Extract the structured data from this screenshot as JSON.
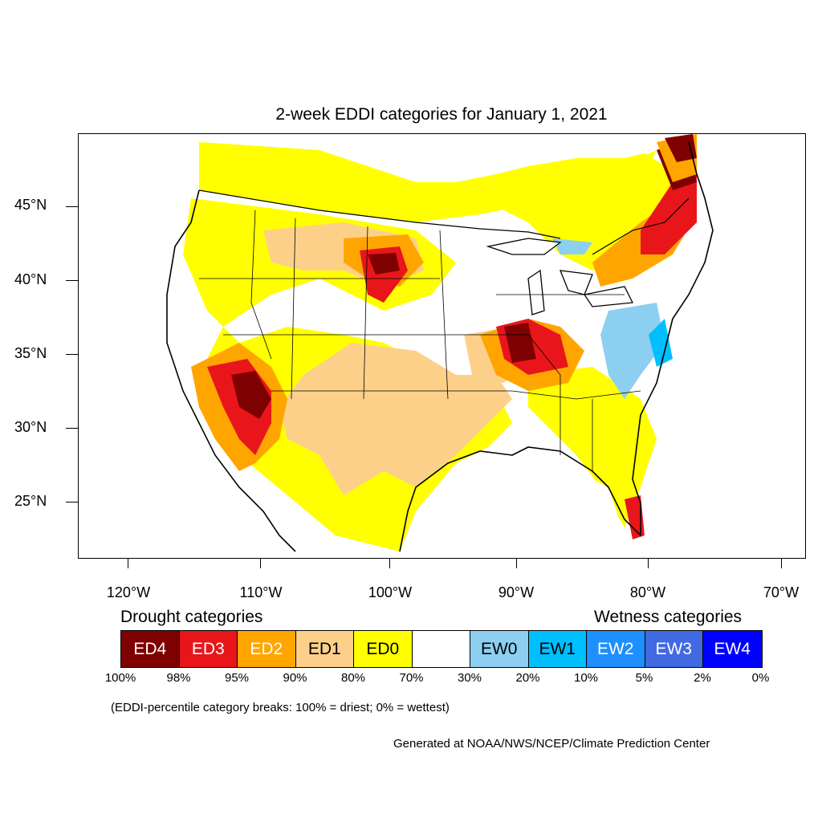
{
  "title": "2-week EDDI categories for January 1, 2021",
  "lat_labels": [
    "45°N",
    "40°N",
    "35°N",
    "30°N",
    "25°N"
  ],
  "lon_labels": [
    "120°W",
    "110°W",
    "100°W",
    "90°W",
    "80°W",
    "70°W"
  ],
  "legend": {
    "drought_heading": "Drought categories",
    "wetness_heading": "Wetness categories",
    "categories": [
      {
        "label": "ED4",
        "color": "#7f0000",
        "text_color": "#ffffff"
      },
      {
        "label": "ED3",
        "color": "#e8161b",
        "text_color": "#ffffff"
      },
      {
        "label": "ED2",
        "color": "#ffa500",
        "text_color": "#ffffff"
      },
      {
        "label": "ED1",
        "color": "#fdd08a",
        "text_color": "#000000"
      },
      {
        "label": "ED0",
        "color": "#ffff00",
        "text_color": "#000000"
      },
      {
        "label": "",
        "color": "#ffffff",
        "text_color": "#000000"
      },
      {
        "label": "EW0",
        "color": "#8ccff0",
        "text_color": "#000000"
      },
      {
        "label": "EW1",
        "color": "#00bfff",
        "text_color": "#000000"
      },
      {
        "label": "EW2",
        "color": "#1e8fff",
        "text_color": "#ffffff"
      },
      {
        "label": "EW3",
        "color": "#4169e1",
        "text_color": "#ffffff"
      },
      {
        "label": "EW4",
        "color": "#0000ff",
        "text_color": "#ffffff"
      }
    ],
    "breaks": [
      "100%",
      "98%",
      "95%",
      "90%",
      "80%",
      "70%",
      "30%",
      "20%",
      "10%",
      "5%",
      "2%",
      "0%"
    ]
  },
  "note": "(EDDI-percentile category breaks: 100% = driest; 0% = wettest)",
  "credit": "Generated at NOAA/NWS/NCEP/Climate Prediction Center"
}
